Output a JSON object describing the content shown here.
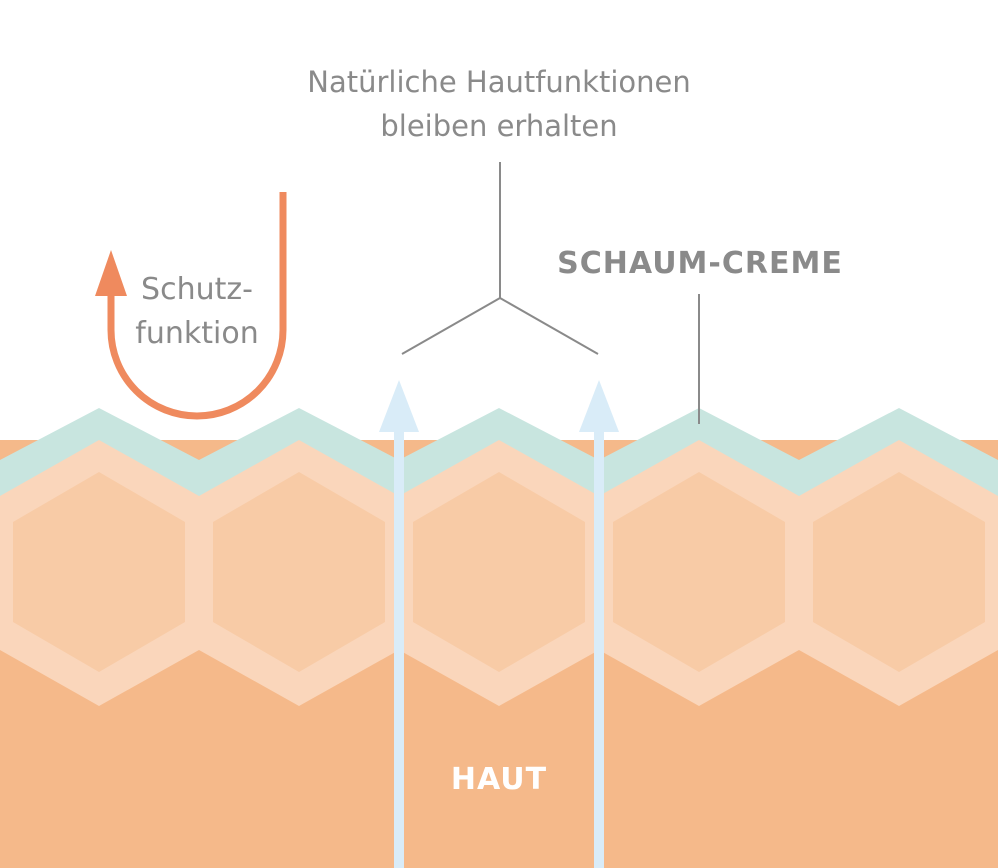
{
  "labels": {
    "natural_line1": "Natürliche Hautfunktionen",
    "natural_line2": "bleiben erhalten",
    "schaum_creme": "SCHAUM-CREME",
    "schutz_line1": "Schutz-",
    "schutz_line2": "funktion",
    "haut": "HAUT"
  },
  "colors": {
    "foam_layer": "#c8e5df",
    "skin_dark": "#f5b98a",
    "cell_border": "#fad6bb",
    "cell_fill": "#f8cba6",
    "protect_arrow": "#ef8a5e",
    "penetration_arrow": "#d9ecf8",
    "leader_line": "#8a8a8a"
  }
}
